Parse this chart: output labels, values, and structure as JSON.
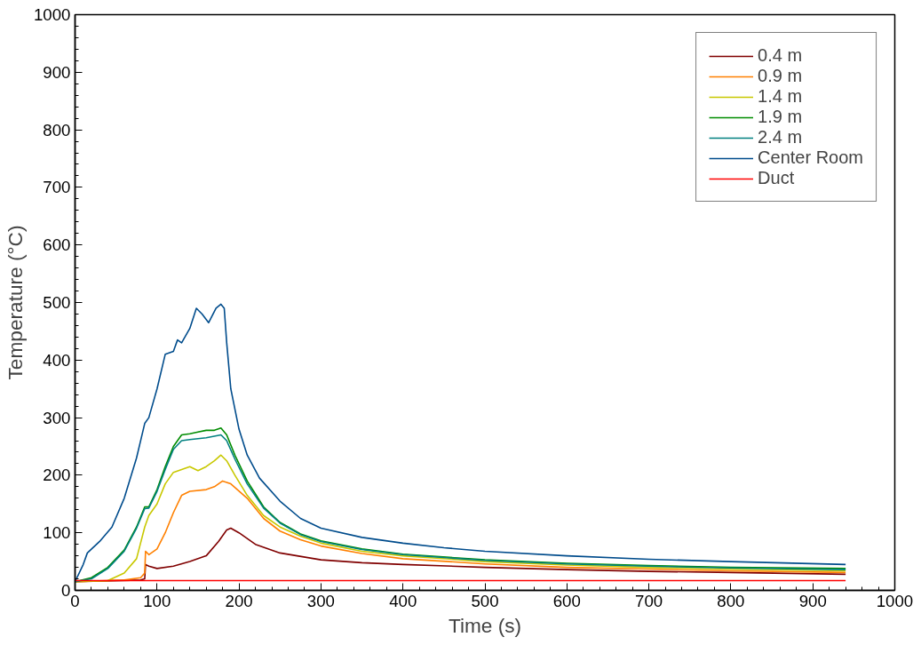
{
  "chart_data": {
    "type": "line",
    "xlabel": "Time (s)",
    "ylabel": "Temperature (°C)",
    "xlim": [
      0,
      1000
    ],
    "ylim": [
      0,
      1000
    ],
    "xticks": [
      0,
      100,
      200,
      300,
      400,
      500,
      600,
      700,
      800,
      900,
      1000
    ],
    "yticks": [
      0,
      100,
      200,
      300,
      400,
      500,
      600,
      700,
      800,
      900,
      1000
    ],
    "grid": false,
    "legend": "top right",
    "marker": "none",
    "line_style": "solid",
    "series": [
      {
        "name": "0.4 m",
        "color": "#800000",
        "x": [
          0,
          80,
          85,
          86,
          90,
          100,
          120,
          140,
          160,
          175,
          185,
          190,
          200,
          220,
          250,
          300,
          350,
          400,
          500,
          600,
          700,
          800,
          940
        ],
        "values": [
          15,
          18,
          20,
          45,
          42,
          38,
          42,
          50,
          60,
          85,
          105,
          108,
          100,
          80,
          65,
          53,
          48,
          45,
          40,
          36,
          33,
          31,
          28
        ]
      },
      {
        "name": "0.9 m",
        "color": "#ff8000",
        "x": [
          0,
          60,
          80,
          85,
          86,
          90,
          100,
          110,
          120,
          130,
          140,
          160,
          170,
          180,
          190,
          210,
          230,
          250,
          275,
          300,
          350,
          400,
          500,
          600,
          700,
          800,
          940
        ],
        "values": [
          15,
          18,
          22,
          30,
          68,
          62,
          72,
          100,
          135,
          165,
          172,
          175,
          180,
          190,
          185,
          160,
          125,
          103,
          88,
          77,
          64,
          55,
          46,
          40,
          37,
          34,
          31
        ]
      },
      {
        "name": "1.4 m",
        "color": "#c8c800",
        "x": [
          0,
          40,
          60,
          75,
          85,
          90,
          100,
          110,
          120,
          130,
          140,
          150,
          160,
          170,
          178,
          185,
          195,
          210,
          230,
          250,
          275,
          300,
          350,
          400,
          500,
          600,
          700,
          800,
          940
        ],
        "values": [
          15,
          17,
          30,
          55,
          110,
          130,
          150,
          185,
          205,
          210,
          215,
          208,
          215,
          225,
          235,
          225,
          200,
          165,
          130,
          110,
          94,
          82,
          68,
          60,
          50,
          44,
          40,
          37,
          34
        ]
      },
      {
        "name": "1.9 m",
        "color": "#008c00",
        "x": [
          0,
          20,
          40,
          60,
          75,
          85,
          90,
          100,
          110,
          120,
          130,
          140,
          150,
          160,
          170,
          178,
          185,
          195,
          210,
          230,
          250,
          275,
          300,
          350,
          400,
          500,
          600,
          700,
          800,
          940
        ],
        "values": [
          15,
          22,
          40,
          70,
          110,
          145,
          145,
          175,
          215,
          250,
          270,
          272,
          275,
          278,
          278,
          282,
          270,
          235,
          190,
          145,
          118,
          98,
          86,
          72,
          63,
          53,
          47,
          43,
          40,
          38
        ]
      },
      {
        "name": "2.4 m",
        "color": "#008080",
        "x": [
          0,
          20,
          40,
          60,
          75,
          85,
          90,
          100,
          110,
          120,
          130,
          140,
          160,
          178,
          185,
          195,
          210,
          230,
          250,
          275,
          300,
          350,
          400,
          500,
          600,
          700,
          800,
          940
        ],
        "values": [
          15,
          20,
          38,
          68,
          108,
          142,
          143,
          172,
          210,
          245,
          260,
          262,
          265,
          270,
          260,
          228,
          185,
          143,
          117,
          97,
          85,
          71,
          62,
          52,
          46,
          42,
          39,
          36
        ]
      },
      {
        "name": "Center Room",
        "color": "#004c8c",
        "x": [
          0,
          10,
          15,
          30,
          45,
          60,
          75,
          85,
          90,
          100,
          110,
          120,
          125,
          130,
          140,
          148,
          155,
          163,
          172,
          178,
          182,
          185,
          190,
          200,
          210,
          225,
          250,
          275,
          300,
          350,
          400,
          450,
          500,
          600,
          700,
          800,
          940
        ],
        "values": [
          15,
          45,
          65,
          85,
          110,
          160,
          230,
          290,
          300,
          350,
          410,
          415,
          435,
          430,
          455,
          490,
          480,
          465,
          490,
          497,
          490,
          430,
          350,
          280,
          235,
          195,
          155,
          125,
          108,
          92,
          82,
          74,
          68,
          60,
          54,
          50,
          45
        ]
      },
      {
        "name": "Duct",
        "color": "#ff0000",
        "x": [
          0,
          940
        ],
        "values": [
          17,
          17
        ]
      }
    ]
  }
}
